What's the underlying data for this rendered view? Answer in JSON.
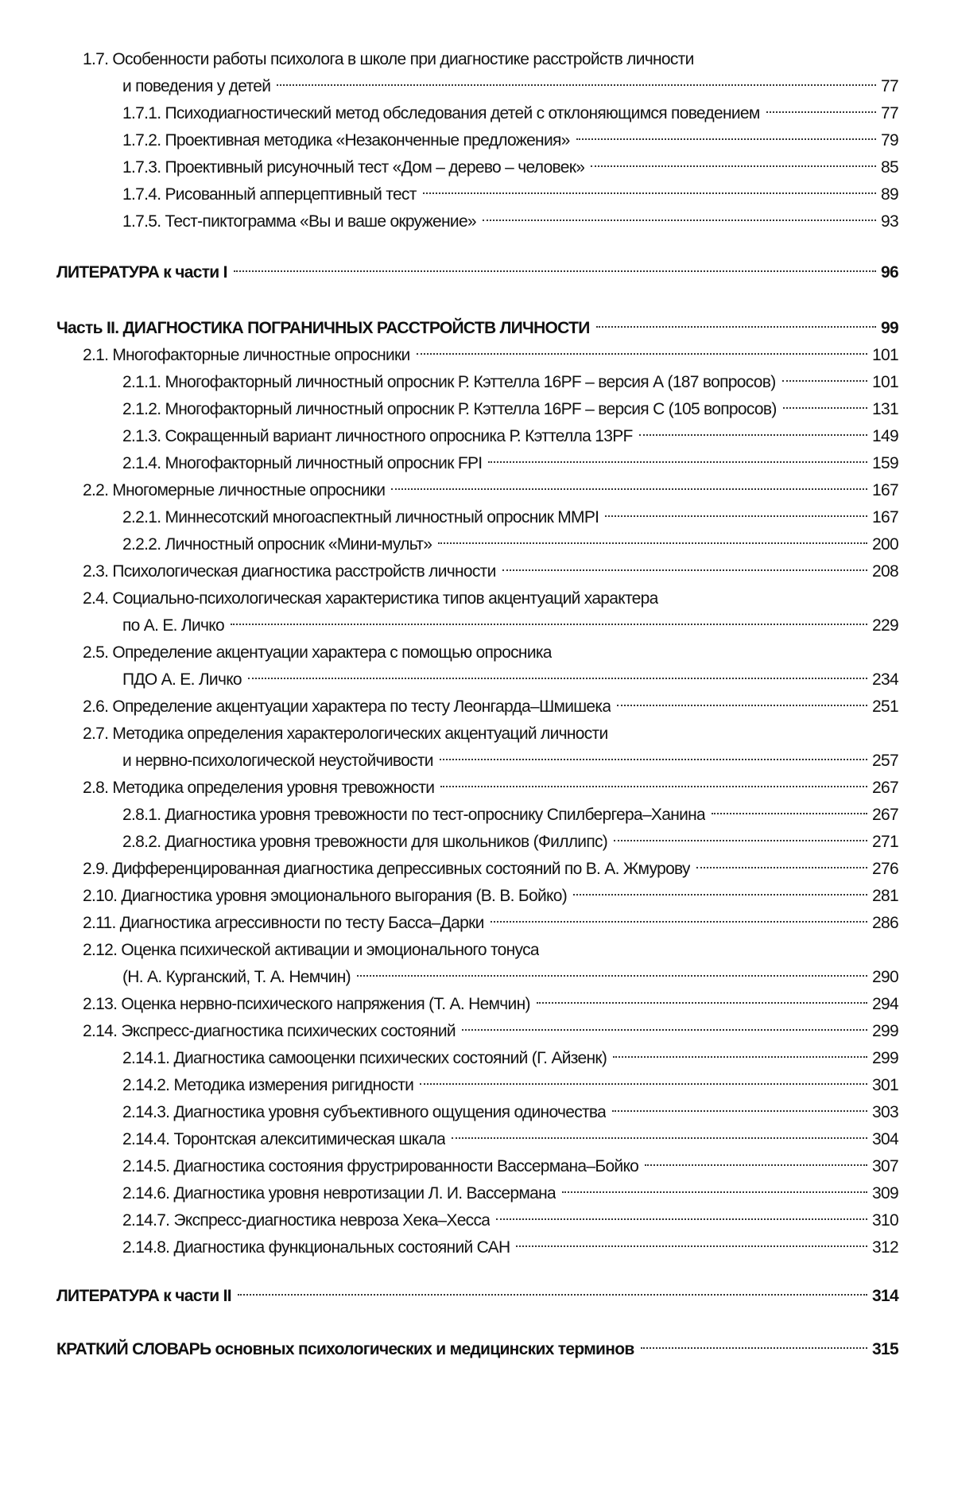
{
  "toc": {
    "group1": [
      {
        "level": 1,
        "line1": "1.7. Особенности работы психолога в школе при диагностике расстройств личности",
        "line2": "и поведения у детей",
        "page": "77"
      },
      {
        "level": 2,
        "line1": "1.7.1. Психодиагностический метод обследования детей с отклоняющимся поведением",
        "page": "77"
      },
      {
        "level": 2,
        "line1": "1.7.2. Проективная методика «Незаконченные предложения»",
        "page": "79"
      },
      {
        "level": 2,
        "line1": "1.7.3. Проективный рисуночный тест «Дом – дерево – человек»",
        "page": "85"
      },
      {
        "level": 2,
        "line1": "1.7.4. Рисованный апперцептивный тест",
        "page": "89"
      },
      {
        "level": 2,
        "line1": "1.7.5. Тест-пиктограмма «Вы и ваше окружение»",
        "page": "93"
      }
    ],
    "lit1": [
      {
        "level": 0,
        "bold": true,
        "line1": "ЛИТЕРАТУРА к части I",
        "page": "96"
      }
    ],
    "part2": [
      {
        "level": 0,
        "bold": true,
        "line1": "Часть II. ДИАГНОСТИКА ПОГРАНИЧНЫХ РАССТРОЙСТВ ЛИЧНОСТИ",
        "page": "99"
      },
      {
        "level": 1,
        "line1": "2.1. Многофакторные личностные опросники",
        "page": "101"
      },
      {
        "level": 2,
        "line1": "2.1.1. Многофакторный личностный опросник Р. Кэттелла 16PF – версия А (187 вопросов)",
        "page": "101"
      },
      {
        "level": 2,
        "line1": "2.1.2. Многофакторный личностный опросник Р. Кэттелла 16PF – версия С (105 вопросов)",
        "page": "131"
      },
      {
        "level": 2,
        "line1": "2.1.3. Сокращенный вариант личностного опросника Р. Кэттелла 13PF",
        "page": "149"
      },
      {
        "level": 2,
        "line1": "2.1.4. Многофакторный личностный опросник FPI",
        "page": "159"
      },
      {
        "level": 1,
        "line1": "2.2. Многомерные личностные опросники",
        "page": "167"
      },
      {
        "level": 2,
        "line1": "2.2.1. Миннесотский многоаспектный личностный опросник MMPI",
        "page": "167"
      },
      {
        "level": 2,
        "line1": "2.2.2. Личностный опросник «Мини-мульт»",
        "page": "200"
      },
      {
        "level": 1,
        "line1": "2.3. Психологическая диагностика расстройств личности",
        "page": "208"
      },
      {
        "level": 1,
        "line1": "2.4. Социально-психологическая характеристика типов акцентуаций характера",
        "line2": "по А. Е. Личко",
        "page": "229"
      },
      {
        "level": 1,
        "line1": "2.5. Определение акцентуации характера с помощью опросника",
        "line2": "ПДО А. Е. Личко",
        "page": "234"
      },
      {
        "level": 1,
        "line1": "2.6. Определение акцентуации характера по тесту Леонгарда–Шмишека",
        "page": "251"
      },
      {
        "level": 1,
        "line1": "2.7. Методика определения характерологических акцентуаций личности",
        "line2": "и нервно-психологической неустойчивости",
        "page": "257"
      },
      {
        "level": 1,
        "line1": "2.8. Методика определения уровня тревожности",
        "page": "267"
      },
      {
        "level": 2,
        "line1": "2.8.1. Диагностика уровня тревожности по тест-опроснику Спилбергера–Ханина",
        "page": "267"
      },
      {
        "level": 2,
        "line1": "2.8.2. Диагностика уровня тревожности для школьников (Филлипс)",
        "page": "271"
      },
      {
        "level": 1,
        "line1": "2.9. Дифференцированная диагностика депрессивных состояний по В. А. Жмурову",
        "page": "276"
      },
      {
        "level": 1,
        "line1": "2.10. Диагностика уровня эмоционального выгорания (В. В. Бойко)",
        "page": "281"
      },
      {
        "level": 1,
        "line1": "2.11. Диагностика агрессивности по тесту Басса–Дарки",
        "page": "286"
      },
      {
        "level": 1,
        "line1": "2.12. Оценка психической активации и эмоционального тонуса",
        "line2": "(Н. А. Курганский, Т. А. Немчин)",
        "page": "290"
      },
      {
        "level": 1,
        "line1": "2.13. Оценка нервно-психического напряжения (Т. А. Немчин)",
        "page": "294"
      },
      {
        "level": 1,
        "line1": "2.14. Экспресс-диагностика психических состояний",
        "page": "299"
      },
      {
        "level": 2,
        "line1": "2.14.1. Диагностика самооценки психических состояний (Г. Айзенк)",
        "page": "299"
      },
      {
        "level": 2,
        "line1": "2.14.2. Методика измерения ригидности",
        "page": "301"
      },
      {
        "level": 2,
        "line1": "2.14.3. Диагностика уровня субъективного ощущения одиночества",
        "page": "303"
      },
      {
        "level": 2,
        "line1": "2.14.4. Торонтская алекситимическая шкала",
        "page": "304"
      },
      {
        "level": 2,
        "line1": "2.14.5. Диагностика состояния фрустрированности Вассермана–Бойко",
        "page": "307"
      },
      {
        "level": 2,
        "line1": "2.14.6. Диагностика уровня невротизации Л. И. Вассермана",
        "page": "309"
      },
      {
        "level": 2,
        "line1": "2.14.7. Экспресс-диагностика невроза Хека–Хесса",
        "page": "310"
      },
      {
        "level": 2,
        "line1": "2.14.8. Диагностика функциональных состояний САН",
        "page": "312"
      }
    ],
    "lit2": [
      {
        "level": 0,
        "bold": true,
        "line1": "ЛИТЕРАТУРА к части II",
        "page": "314"
      }
    ],
    "glossary": [
      {
        "level": 0,
        "bold": true,
        "line1": "КРАТКИЙ СЛОВАРЬ основных психологических и медицинских терминов",
        "page": "315"
      }
    ]
  }
}
